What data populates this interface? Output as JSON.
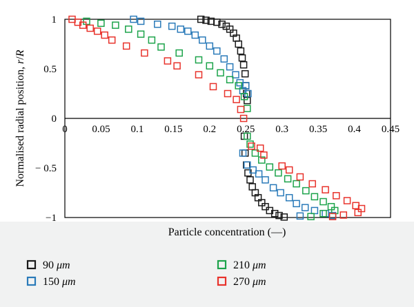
{
  "chart_data": {
    "type": "scatter",
    "xlabel": "Particle concentration (—)",
    "ylabel": "Normalised radial position, r/R",
    "ylabel_parts": [
      "Normalised radial position, ",
      "r",
      "/",
      "R"
    ],
    "xlim": [
      0,
      0.45
    ],
    "ylim": [
      -1,
      1
    ],
    "x_ticks": [
      0,
      0.05,
      0.1,
      0.15,
      0.2,
      0.25,
      0.3,
      0.35,
      0.4,
      0.45
    ],
    "x_tick_labels": [
      "0",
      "0.05",
      "0.1",
      "0.15",
      "0.2",
      "0.25",
      "0.3",
      "0.35",
      "0.4",
      "0.45"
    ],
    "y_ticks": [
      1,
      0.5,
      0,
      -0.5,
      -1
    ],
    "y_tick_labels": [
      "1",
      "0.5",
      "0",
      "− 0.5",
      "−1"
    ],
    "legend_position": "bottom",
    "series": [
      {
        "name": "90 μm",
        "name_value": "90",
        "name_unit": "μm",
        "color": "#1a1a1a",
        "points": [
          [
            0.188,
            1.0
          ],
          [
            0.195,
            0.99
          ],
          [
            0.202,
            0.98
          ],
          [
            0.21,
            0.97
          ],
          [
            0.217,
            0.95
          ],
          [
            0.223,
            0.93
          ],
          [
            0.228,
            0.9
          ],
          [
            0.233,
            0.86
          ],
          [
            0.237,
            0.81
          ],
          [
            0.24,
            0.75
          ],
          [
            0.243,
            0.68
          ],
          [
            0.245,
            0.61
          ],
          [
            0.247,
            0.54
          ],
          [
            0.249,
            0.45
          ],
          [
            0.25,
            0.33
          ],
          [
            0.251,
            0.25
          ],
          [
            0.252,
            0.18
          ],
          [
            0.248,
            -0.18
          ],
          [
            0.249,
            -0.35
          ],
          [
            0.251,
            -0.47
          ],
          [
            0.253,
            -0.55
          ],
          [
            0.256,
            -0.62
          ],
          [
            0.259,
            -0.69
          ],
          [
            0.263,
            -0.75
          ],
          [
            0.267,
            -0.8
          ],
          [
            0.272,
            -0.85
          ],
          [
            0.277,
            -0.89
          ],
          [
            0.283,
            -0.93
          ],
          [
            0.29,
            -0.96
          ],
          [
            0.296,
            -0.98
          ],
          [
            0.303,
            -0.995
          ]
        ]
      },
      {
        "name": "150 μm",
        "name_value": "150",
        "name_unit": "μm",
        "color": "#2a7ab9",
        "points": [
          [
            0.095,
            1.0
          ],
          [
            0.105,
            0.98
          ],
          [
            0.128,
            0.95
          ],
          [
            0.148,
            0.93
          ],
          [
            0.16,
            0.9
          ],
          [
            0.17,
            0.88
          ],
          [
            0.18,
            0.84
          ],
          [
            0.19,
            0.79
          ],
          [
            0.2,
            0.73
          ],
          [
            0.21,
            0.68
          ],
          [
            0.22,
            0.6
          ],
          [
            0.228,
            0.52
          ],
          [
            0.236,
            0.44
          ],
          [
            0.242,
            0.36
          ],
          [
            0.246,
            0.28
          ],
          [
            0.25,
            0.33
          ],
          [
            0.253,
            0.25
          ],
          [
            0.246,
            -0.35
          ],
          [
            0.252,
            -0.47
          ],
          [
            0.26,
            -0.52
          ],
          [
            0.268,
            -0.56
          ],
          [
            0.277,
            -0.62
          ],
          [
            0.288,
            -0.7
          ],
          [
            0.298,
            -0.75
          ],
          [
            0.31,
            -0.8
          ],
          [
            0.32,
            -0.86
          ],
          [
            0.332,
            -0.9
          ],
          [
            0.345,
            -0.93
          ],
          [
            0.36,
            -0.96
          ],
          [
            0.37,
            -0.98
          ],
          [
            0.325,
            -0.985
          ]
        ]
      },
      {
        "name": "210 μm",
        "name_value": "210",
        "name_unit": "μm",
        "color": "#1ca34a",
        "points": [
          [
            0.03,
            0.98
          ],
          [
            0.05,
            0.96
          ],
          [
            0.07,
            0.94
          ],
          [
            0.088,
            0.9
          ],
          [
            0.105,
            0.85
          ],
          [
            0.12,
            0.79
          ],
          [
            0.133,
            0.72
          ],
          [
            0.158,
            0.66
          ],
          [
            0.185,
            0.59
          ],
          [
            0.2,
            0.53
          ],
          [
            0.215,
            0.46
          ],
          [
            0.228,
            0.39
          ],
          [
            0.24,
            0.33
          ],
          [
            0.248,
            0.22
          ],
          [
            0.252,
            0.1
          ],
          [
            0.252,
            -0.18
          ],
          [
            0.256,
            -0.26
          ],
          [
            0.263,
            -0.35
          ],
          [
            0.272,
            -0.42
          ],
          [
            0.283,
            -0.49
          ],
          [
            0.295,
            -0.55
          ],
          [
            0.308,
            -0.61
          ],
          [
            0.32,
            -0.66
          ],
          [
            0.333,
            -0.73
          ],
          [
            0.345,
            -0.79
          ],
          [
            0.357,
            -0.84
          ],
          [
            0.368,
            -0.89
          ],
          [
            0.373,
            -0.93
          ],
          [
            0.357,
            -0.96
          ],
          [
            0.34,
            -0.99
          ]
        ]
      },
      {
        "name": "270 μm",
        "name_value": "270",
        "name_unit": "μm",
        "color": "#e8322b",
        "points": [
          [
            0.01,
            1.0
          ],
          [
            0.018,
            0.97
          ],
          [
            0.025,
            0.94
          ],
          [
            0.035,
            0.91
          ],
          [
            0.045,
            0.88
          ],
          [
            0.055,
            0.84
          ],
          [
            0.065,
            0.79
          ],
          [
            0.085,
            0.73
          ],
          [
            0.11,
            0.66
          ],
          [
            0.142,
            0.58
          ],
          [
            0.155,
            0.53
          ],
          [
            0.185,
            0.44
          ],
          [
            0.205,
            0.32
          ],
          [
            0.225,
            0.25
          ],
          [
            0.237,
            0.19
          ],
          [
            0.243,
            0.09
          ],
          [
            0.247,
            0.0
          ],
          [
            0.258,
            -0.28
          ],
          [
            0.27,
            -0.3
          ],
          [
            0.275,
            -0.37
          ],
          [
            0.3,
            -0.48
          ],
          [
            0.31,
            -0.52
          ],
          [
            0.325,
            -0.59
          ],
          [
            0.342,
            -0.66
          ],
          [
            0.36,
            -0.72
          ],
          [
            0.375,
            -0.78
          ],
          [
            0.39,
            -0.83
          ],
          [
            0.402,
            -0.88
          ],
          [
            0.41,
            -0.91
          ],
          [
            0.405,
            -0.95
          ],
          [
            0.385,
            -0.975
          ],
          [
            0.37,
            -0.99
          ]
        ]
      }
    ]
  }
}
